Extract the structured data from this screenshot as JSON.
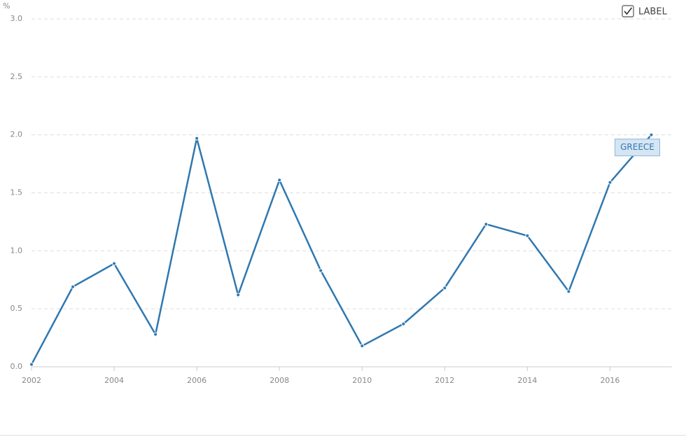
{
  "chart_data": {
    "type": "line",
    "unit": "%",
    "label_toggle": "LABEL",
    "x": [
      2002,
      2003,
      2004,
      2005,
      2006,
      2007,
      2008,
      2009,
      2010,
      2011,
      2012,
      2013,
      2014,
      2015,
      2016,
      2017
    ],
    "series": [
      {
        "name": "GREECE",
        "color": "#2f78b0",
        "values": [
          0.02,
          0.69,
          0.89,
          0.28,
          1.97,
          0.62,
          1.61,
          0.83,
          0.18,
          0.37,
          0.68,
          1.23,
          1.13,
          0.65,
          1.59,
          2.0
        ]
      }
    ],
    "xlim": [
      2002,
      2017.5
    ],
    "ylim": [
      0,
      3
    ],
    "xticks": [
      2002,
      2004,
      2006,
      2008,
      2010,
      2012,
      2014,
      2016
    ],
    "yticks": [
      {
        "value": 0,
        "label": "0.0"
      },
      0.5,
      {
        "value": 1,
        "label": "1.0"
      },
      1.5,
      {
        "value": 2,
        "label": "2.0"
      },
      2.5,
      {
        "value": 3,
        "label": "3.0"
      }
    ],
    "grid": true
  }
}
